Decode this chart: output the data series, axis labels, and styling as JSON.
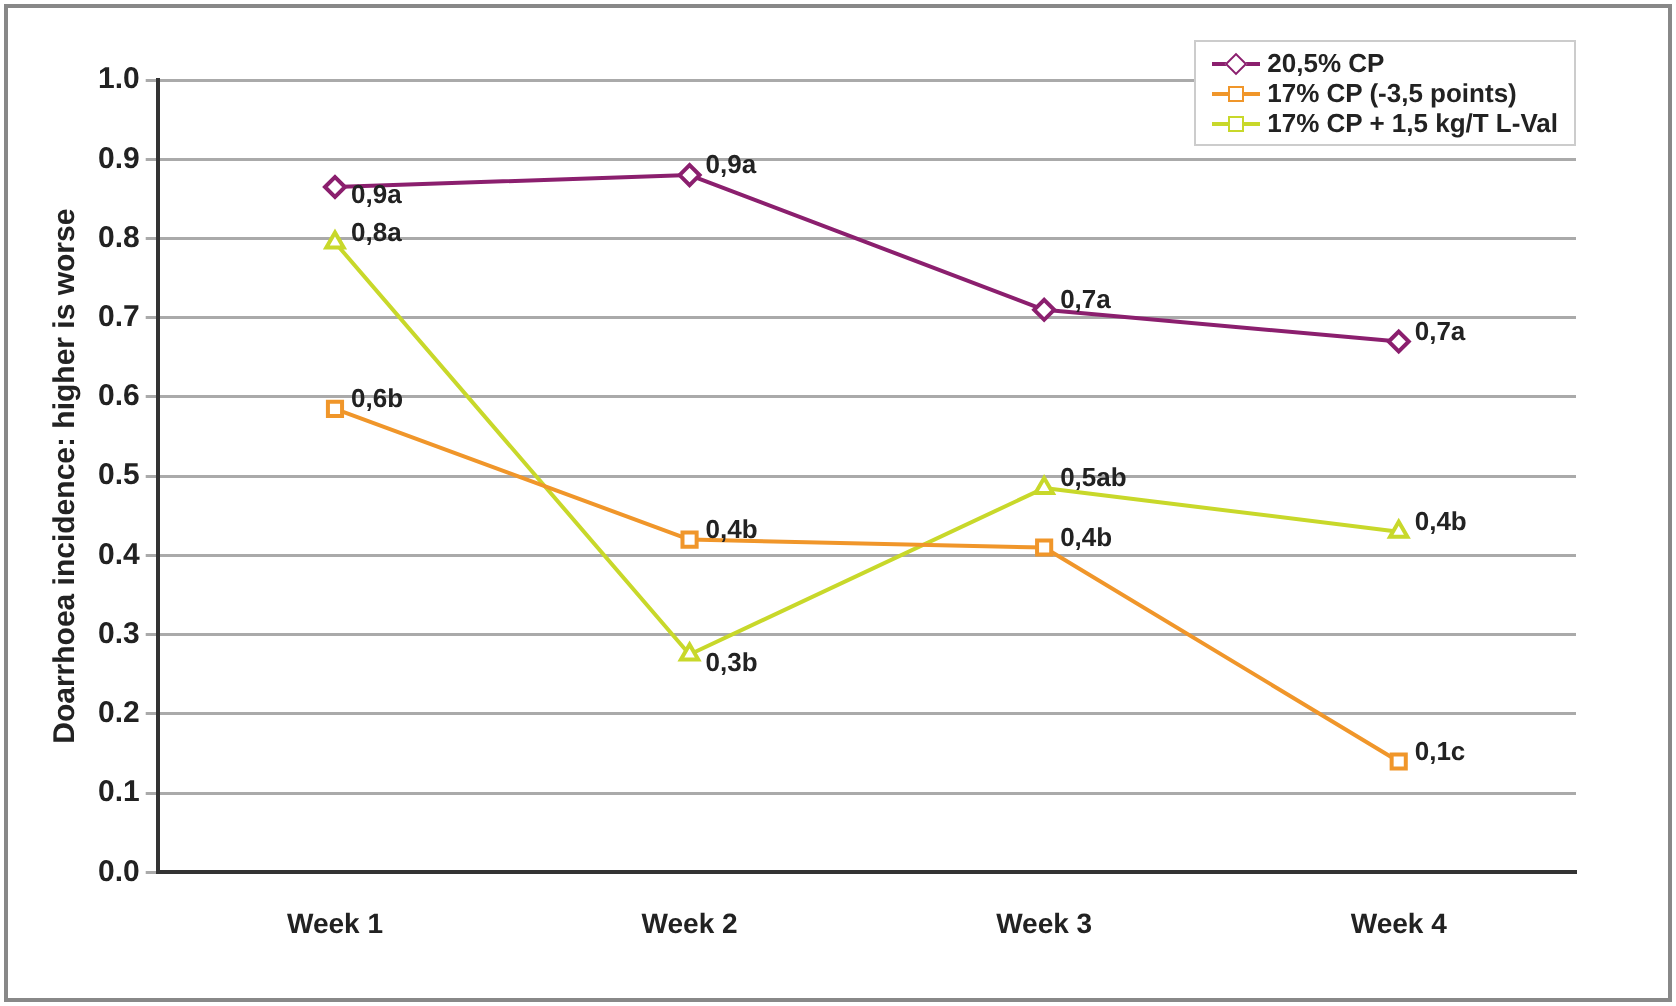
{
  "chart_data": {
    "type": "line",
    "ylabel": "Doarrhoea incidence: higher is worse",
    "categories": [
      "Week 1",
      "Week 2",
      "Week 3",
      "Week 4"
    ],
    "series": [
      {
        "name": "20,5% CP",
        "color": "#8b1f6e",
        "marker": "diamond",
        "values": [
          0.865,
          0.88,
          0.71,
          0.67
        ],
        "value_labels": [
          "0,9a",
          "0,9a",
          "0,7a",
          "0,7a"
        ]
      },
      {
        "name": "17% CP (-3,5 points)",
        "color": "#f0962a",
        "marker": "square",
        "values": [
          0.585,
          0.42,
          0.41,
          0.14
        ],
        "value_labels": [
          "0,6b",
          "0,4b",
          "0,4b",
          "0,1c"
        ]
      },
      {
        "name": "17% CP + 1,5 kg/T L-Val",
        "color": "#c8d82a",
        "marker": "triangle",
        "values": [
          0.795,
          0.275,
          0.485,
          0.43
        ],
        "value_labels": [
          "0,8a",
          "0,3b",
          "0,5ab",
          "0,4b"
        ]
      }
    ],
    "ylim": [
      0,
      1
    ],
    "yticks": [
      {
        "value": 0,
        "label": "0.0"
      },
      0.1,
      0.2,
      0.3,
      0.4,
      0.5,
      0.6,
      0.7,
      0.8,
      0.9,
      {
        "value": 1,
        "label": "1.0"
      }
    ],
    "grid": "y",
    "legend": "top right",
    "line_style": "solid"
  }
}
